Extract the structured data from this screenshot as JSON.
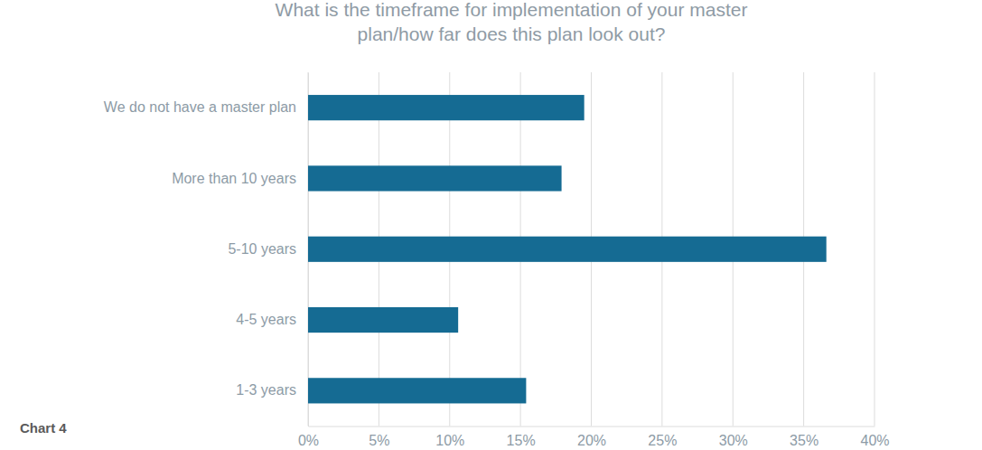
{
  "chart_data": {
    "type": "bar",
    "orientation": "horizontal",
    "title": "What is the timeframe for implementation of your master plan/how far does this plan look out?",
    "annotations": [
      "Chart 4"
    ],
    "categories": [
      "We do not have a master plan",
      "More than 10 years",
      "5-10 years",
      "4-5 years",
      "1-3 years"
    ],
    "values": [
      19.5,
      17.9,
      36.6,
      10.6,
      15.4
    ],
    "color": "#156b93",
    "xlim": [
      0,
      40
    ],
    "xticks": [
      {
        "value": 0,
        "label": "0%"
      },
      {
        "value": 5,
        "label": "5%"
      },
      {
        "value": 10,
        "label": "10%"
      },
      {
        "value": 15,
        "label": "15%"
      },
      {
        "value": 20,
        "label": "20%"
      },
      {
        "value": 25,
        "label": "25%"
      },
      {
        "value": 30,
        "label": "30%"
      },
      {
        "value": 35,
        "label": "35%"
      },
      {
        "value": 40,
        "label": "40%"
      }
    ],
    "grid": true
  }
}
